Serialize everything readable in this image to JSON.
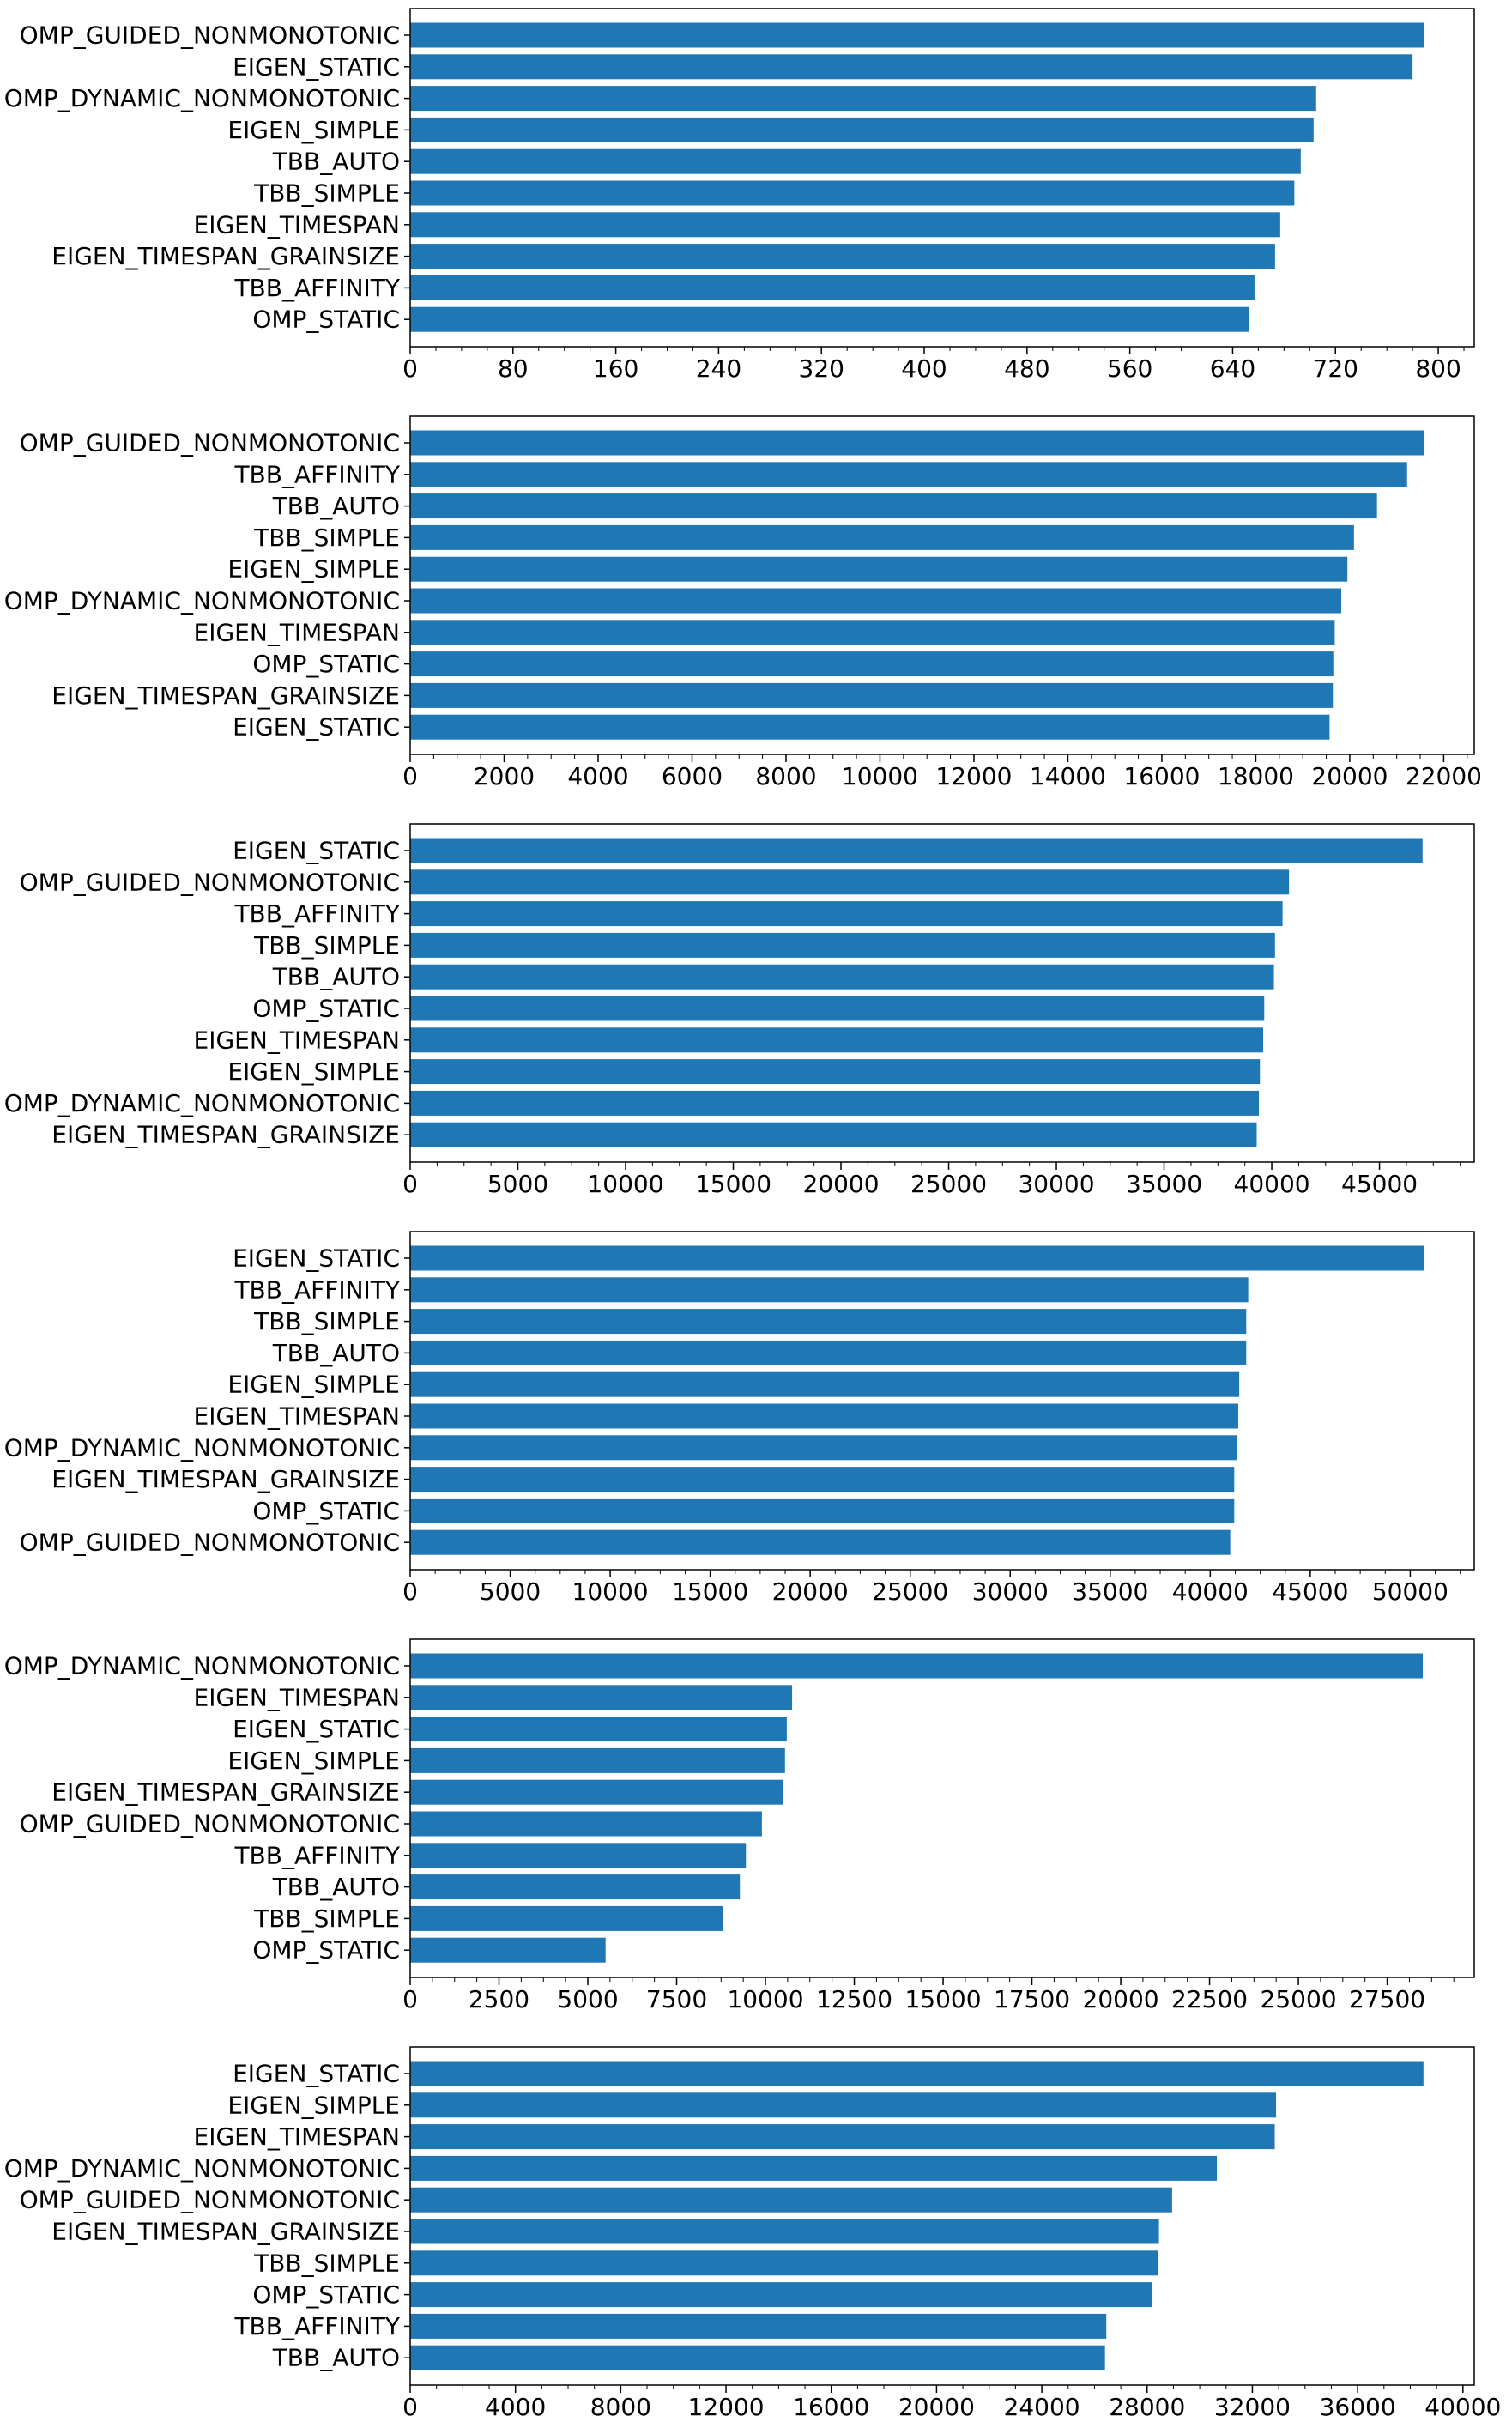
{
  "colors": {
    "bar": "#1f77b4",
    "axis": "#000000",
    "background": "#ffffff"
  },
  "chart_data": [
    {
      "type": "bar",
      "orientation": "horizontal",
      "categories": [
        "OMP_GUIDED_NONMONOTONIC",
        "EIGEN_STATIC",
        "OMP_DYNAMIC_NONMONOTONIC",
        "EIGEN_SIMPLE",
        "TBB_AUTO",
        "TBB_SIMPLE",
        "EIGEN_TIMESPAN",
        "EIGEN_TIMESPAN_GRAINSIZE",
        "TBB_AFFINITY",
        "OMP_STATIC"
      ],
      "values": [
        789,
        780,
        705,
        703,
        693,
        688,
        677,
        673,
        657,
        653
      ],
      "xlim": [
        0,
        828
      ],
      "xticks": [
        0,
        80,
        160,
        240,
        320,
        400,
        480,
        560,
        640,
        720,
        800
      ],
      "xticklabels": [
        "0",
        "80",
        "160",
        "240",
        "320",
        "400",
        "480",
        "560",
        "640",
        "720",
        "800"
      ],
      "minor_ticks_per_major": 4,
      "grid": false
    },
    {
      "type": "bar",
      "orientation": "horizontal",
      "categories": [
        "OMP_GUIDED_NONMONOTONIC",
        "TBB_AFFINITY",
        "TBB_AUTO",
        "TBB_SIMPLE",
        "EIGEN_SIMPLE",
        "OMP_DYNAMIC_NONMONOTONIC",
        "EIGEN_TIMESPAN",
        "OMP_STATIC",
        "EIGEN_TIMESPAN_GRAINSIZE",
        "EIGEN_STATIC"
      ],
      "values": [
        21580,
        21220,
        20580,
        20090,
        19950,
        19820,
        19680,
        19650,
        19640,
        19570
      ],
      "xlim": [
        0,
        22650
      ],
      "xticks": [
        0,
        2000,
        4000,
        6000,
        8000,
        10000,
        12000,
        14000,
        16000,
        18000,
        20000,
        22000
      ],
      "xticklabels": [
        "0",
        "2000",
        "4000",
        "6000",
        "8000",
        "10000",
        "12000",
        "14000",
        "16000",
        "18000",
        "20000",
        "22000"
      ],
      "minor_ticks_per_major": 4,
      "grid": false
    },
    {
      "type": "bar",
      "orientation": "horizontal",
      "categories": [
        "EIGEN_STATIC",
        "OMP_GUIDED_NONMONOTONIC",
        "TBB_AFFINITY",
        "TBB_SIMPLE",
        "TBB_AUTO",
        "OMP_STATIC",
        "EIGEN_TIMESPAN",
        "EIGEN_SIMPLE",
        "OMP_DYNAMIC_NONMONOTONIC",
        "EIGEN_TIMESPAN_GRAINSIZE"
      ],
      "values": [
        47000,
        40800,
        40500,
        40150,
        40100,
        39650,
        39600,
        39450,
        39400,
        39300
      ],
      "xlim": [
        0,
        49400
      ],
      "xticks": [
        0,
        5000,
        10000,
        15000,
        20000,
        25000,
        30000,
        35000,
        40000,
        45000
      ],
      "xticklabels": [
        "0",
        "5000",
        "10000",
        "15000",
        "20000",
        "25000",
        "30000",
        "35000",
        "40000",
        "45000"
      ],
      "minor_ticks_per_major": 4,
      "grid": false
    },
    {
      "type": "bar",
      "orientation": "horizontal",
      "categories": [
        "EIGEN_STATIC",
        "TBB_AFFINITY",
        "TBB_SIMPLE",
        "TBB_AUTO",
        "EIGEN_SIMPLE",
        "EIGEN_TIMESPAN",
        "OMP_DYNAMIC_NONMONOTONIC",
        "EIGEN_TIMESPAN_GRAINSIZE",
        "OMP_STATIC",
        "OMP_GUIDED_NONMONOTONIC"
      ],
      "values": [
        50700,
        41900,
        41800,
        41800,
        41450,
        41400,
        41350,
        41200,
        41200,
        41000
      ],
      "xlim": [
        0,
        53200
      ],
      "xticks": [
        0,
        5000,
        10000,
        15000,
        20000,
        25000,
        30000,
        35000,
        40000,
        45000,
        50000
      ],
      "xticklabels": [
        "0",
        "5000",
        "10000",
        "15000",
        "20000",
        "25000",
        "30000",
        "35000",
        "40000",
        "45000",
        "50000"
      ],
      "minor_ticks_per_major": 4,
      "grid": false
    },
    {
      "type": "bar",
      "orientation": "horizontal",
      "categories": [
        "OMP_DYNAMIC_NONMONOTONIC",
        "EIGEN_TIMESPAN",
        "EIGEN_STATIC",
        "EIGEN_SIMPLE",
        "EIGEN_TIMESPAN_GRAINSIZE",
        "OMP_GUIDED_NONMONOTONIC",
        "TBB_AFFINITY",
        "TBB_AUTO",
        "TBB_SIMPLE",
        "OMP_STATIC"
      ],
      "values": [
        28500,
        10750,
        10600,
        10550,
        10500,
        9900,
        9450,
        9280,
        8800,
        5500
      ],
      "xlim": [
        0,
        29950
      ],
      "xticks": [
        0,
        2500,
        5000,
        7500,
        10000,
        12500,
        15000,
        17500,
        20000,
        22500,
        25000,
        27500
      ],
      "xticklabels": [
        "0",
        "2500",
        "5000",
        "7500",
        "10000",
        "12500",
        "15000",
        "17500",
        "20000",
        "22500",
        "25000",
        "27500"
      ],
      "minor_ticks_per_major": 4,
      "grid": false
    },
    {
      "type": "bar",
      "orientation": "horizontal",
      "categories": [
        "EIGEN_STATIC",
        "EIGEN_SIMPLE",
        "EIGEN_TIMESPAN",
        "OMP_DYNAMIC_NONMONOTONIC",
        "OMP_GUIDED_NONMONOTONIC",
        "EIGEN_TIMESPAN_GRAINSIZE",
        "TBB_SIMPLE",
        "OMP_STATIC",
        "TBB_AFFINITY",
        "TBB_AUTO"
      ],
      "values": [
        38500,
        32900,
        32850,
        30650,
        28950,
        28450,
        28400,
        28200,
        26450,
        26400
      ],
      "xlim": [
        0,
        40430
      ],
      "xticks": [
        0,
        4000,
        8000,
        12000,
        16000,
        20000,
        24000,
        28000,
        32000,
        36000,
        40000
      ],
      "xticklabels": [
        "0",
        "4000",
        "8000",
        "12000",
        "16000",
        "20000",
        "24000",
        "28000",
        "32000",
        "36000",
        "40000"
      ],
      "minor_ticks_per_major": 4,
      "grid": false
    }
  ]
}
